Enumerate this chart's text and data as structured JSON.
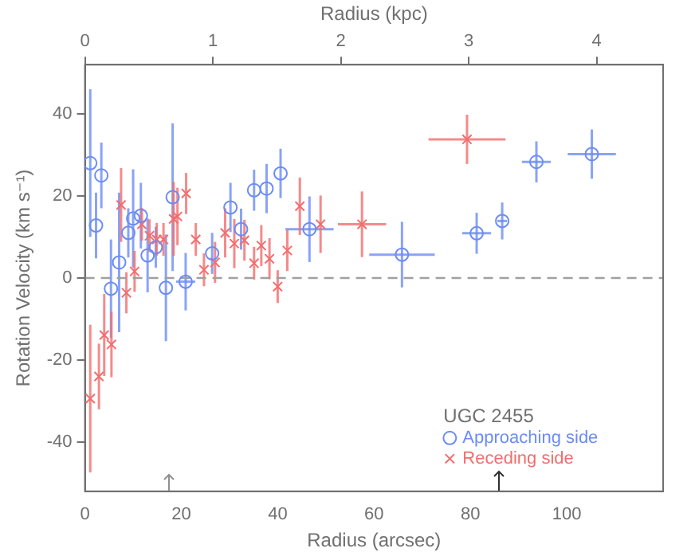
{
  "chart_data": {
    "type": "scatter",
    "xlabel": "Radius (arcsec)",
    "x2label": "Radius (kpc)",
    "ylabel": "Rotation Velocity (km s⁻¹)",
    "legend_title": "UGC 2455",
    "legend": "bottom right",
    "grid": false,
    "xlim": [
      0,
      120
    ],
    "xticks": [
      0,
      20,
      40,
      60,
      80,
      100
    ],
    "x2lim": [
      0,
      4.52
    ],
    "x2ticks": [
      0,
      1,
      2,
      3,
      4
    ],
    "ylim": [
      -52,
      52
    ],
    "yticks": [
      -40,
      -20,
      0,
      20,
      40
    ],
    "ref_lines": [
      {
        "axis": "y",
        "value": 0,
        "color": "#a0a0a0",
        "line_style": "dashed"
      }
    ],
    "series": [
      {
        "name": "Approaching side",
        "color": "#6b8cf5",
        "marker": "circle",
        "x": [
          1.1,
          3.4,
          2.3,
          7.1,
          5.4,
          9,
          10,
          11.6,
          13,
          14.7,
          18.2,
          16.8,
          20.9,
          26.4,
          30.2,
          32.4,
          35.1,
          37.7,
          40.6,
          46.6,
          65.8,
          81.3,
          86.6,
          93.7,
          105.2
        ],
        "values": [
          28,
          25,
          12.8,
          3.8,
          -2.6,
          11,
          14.5,
          15.2,
          5.5,
          7.5,
          19.7,
          -2.4,
          -0.9,
          6,
          17.2,
          11.9,
          21.4,
          21.8,
          25.5,
          11.9,
          5.7,
          10.9,
          13.9,
          28.3,
          30.2
        ],
        "errors": [
          18,
          8,
          8,
          17,
          12,
          6,
          12,
          8,
          9,
          5,
          18,
          13,
          7,
          5,
          6,
          5,
          5,
          6,
          6,
          8,
          8,
          5,
          4.5,
          5,
          6
        ],
        "xerrors": [
          null,
          null,
          null,
          null,
          null,
          null,
          null,
          null,
          null,
          null,
          null,
          null,
          2,
          null,
          null,
          null,
          null,
          null,
          null,
          5,
          6.8,
          3,
          1,
          3,
          5
        ]
      },
      {
        "name": "Receding side",
        "color": "#f26d6d",
        "marker": "cross",
        "x": [
          1.1,
          2.9,
          4,
          5.5,
          7.5,
          8.6,
          10.3,
          11.8,
          13.4,
          14.9,
          16.3,
          18.4,
          19.2,
          21,
          23,
          24.7,
          27,
          29.1,
          31,
          33.1,
          35.1,
          36.6,
          38.3,
          40,
          42,
          44.6,
          48.9,
          57.5,
          79.3
        ],
        "values": [
          -29.4,
          -24,
          -13.9,
          -16.2,
          17.8,
          -3.6,
          1.6,
          13.1,
          10.3,
          9.4,
          9.4,
          14.4,
          15,
          20.6,
          9.4,
          2,
          3.8,
          11,
          8.4,
          9.2,
          3.6,
          7.9,
          4.7,
          -2.1,
          6.7,
          17.5,
          13.1,
          13.1,
          33.8
        ],
        "errors": [
          18,
          8,
          10,
          8,
          9,
          5,
          5,
          4,
          4,
          4,
          4,
          9,
          7,
          5,
          4,
          4,
          5,
          6,
          6,
          5,
          4,
          5,
          5,
          4,
          5,
          7,
          7,
          8,
          6
        ],
        "xerrors": [
          null,
          null,
          null,
          null,
          null,
          null,
          null,
          null,
          null,
          null,
          null,
          null,
          null,
          null,
          null,
          null,
          null,
          null,
          null,
          null,
          null,
          null,
          null,
          null,
          null,
          null,
          null,
          5,
          8
        ]
      }
    ]
  }
}
